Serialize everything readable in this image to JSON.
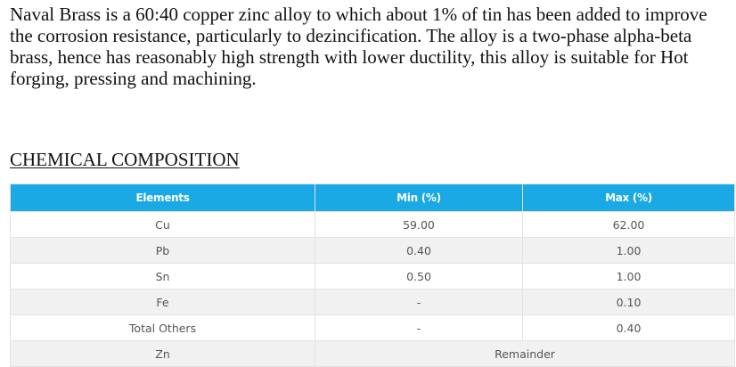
{
  "intro": {
    "text": "Naval Brass is a 60:40 copper zinc alloy to which about 1% of tin has been added to improve the corrosion resistance, particularly to dezincification. The alloy is a two-phase alpha-beta brass, hence has reasonably high strength with lower ductility, this alloy is suitable for Hot forging, pressing and machining."
  },
  "section": {
    "heading": "CHEMICAL COMPOSITION"
  },
  "table": {
    "headers": {
      "elements": "Elements",
      "min": "Min (%)",
      "max": "Max (%)"
    },
    "rows": [
      {
        "element": "Cu",
        "min": "59.00",
        "max": "62.00"
      },
      {
        "element": "Pb",
        "min": "0.40",
        "max": "1.00"
      },
      {
        "element": "Sn",
        "min": "0.50",
        "max": "1.00"
      },
      {
        "element": "Fe",
        "min": "-",
        "max": "0.10"
      },
      {
        "element": "Total Others",
        "min": "-",
        "max": "0.40"
      }
    ],
    "last_row": {
      "element": "Zn",
      "value": "Remainder"
    }
  },
  "colors": {
    "header_bg": "#1aa9e5",
    "header_text": "#ffffff",
    "row_alt_bg": "#f1f1f1",
    "cell_text": "#555555"
  }
}
